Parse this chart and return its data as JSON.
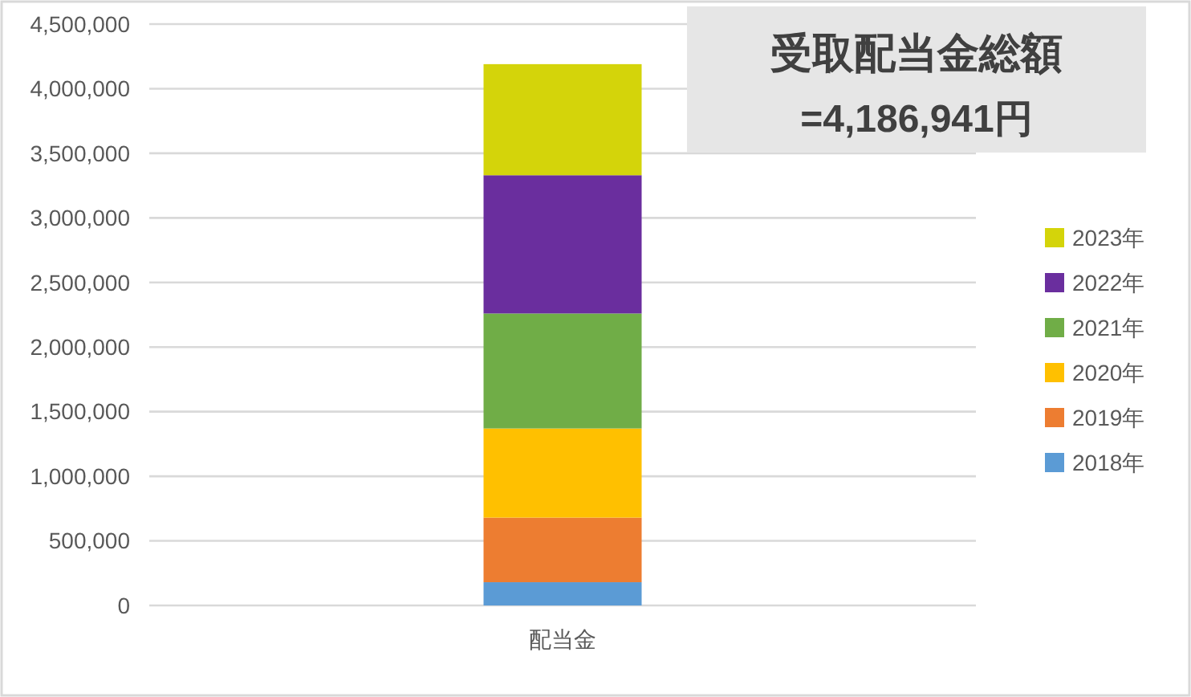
{
  "chart_data": {
    "type": "bar",
    "title": "受取配当金総額",
    "subtitle": "=4,186,941円",
    "categories": [
      "配当金"
    ],
    "stacked": true,
    "series": [
      {
        "name": "2018年",
        "color": "#5b9bd5",
        "values": [
          180000
        ]
      },
      {
        "name": "2019年",
        "color": "#ed7d31",
        "values": [
          500000
        ]
      },
      {
        "name": "2020年",
        "color": "#ffc000",
        "values": [
          690000
        ]
      },
      {
        "name": "2021年",
        "color": "#70ad47",
        "values": [
          890000
        ]
      },
      {
        "name": "2022年",
        "color": "#6a2e9e",
        "values": [
          1070000
        ]
      },
      {
        "name": "2023年",
        "color": "#d4d40a",
        "values": [
          860000
        ]
      }
    ],
    "ylim": [
      0,
      4500000
    ],
    "yticks": [
      {
        "value": 0,
        "label": "0"
      },
      {
        "value": 500000,
        "label": "500,000"
      },
      {
        "value": 1000000,
        "label": "1,000,000"
      },
      {
        "value": 1500000,
        "label": "1,500,000"
      },
      {
        "value": 2000000,
        "label": "2,000,000"
      },
      {
        "value": 2500000,
        "label": "2,500,000"
      },
      {
        "value": 3000000,
        "label": "3,000,000"
      },
      {
        "value": 3500000,
        "label": "3,500,000"
      },
      {
        "value": 4000000,
        "label": "4,000,000"
      },
      {
        "value": 4500000,
        "label": "4,500,000"
      }
    ],
    "grid": "y",
    "legend": "right"
  }
}
